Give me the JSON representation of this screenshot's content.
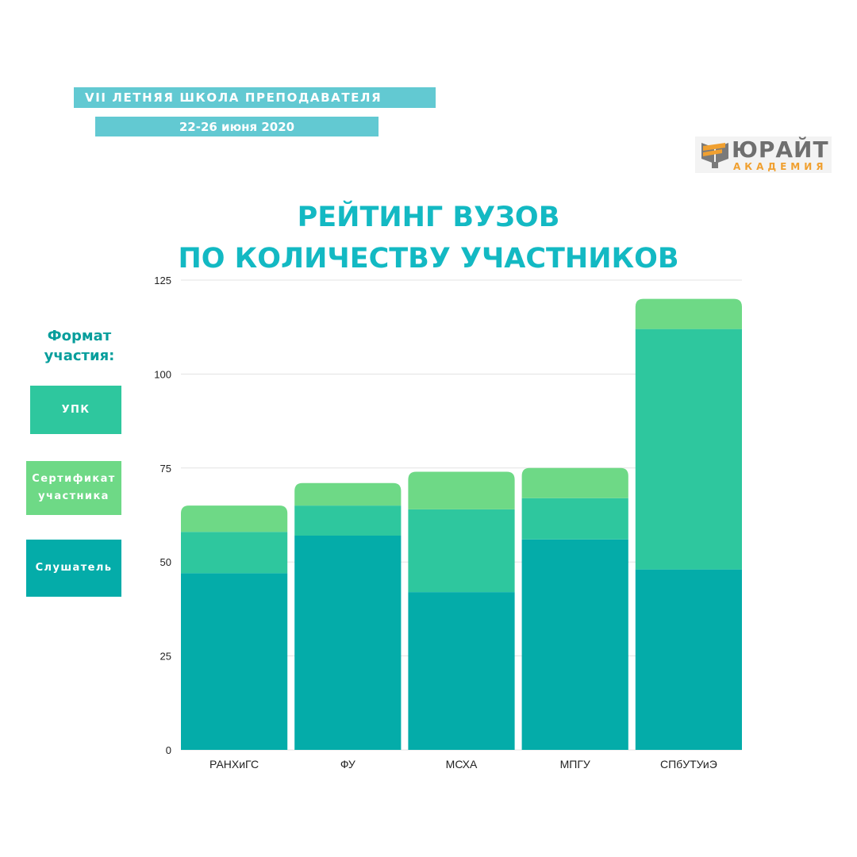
{
  "header": {
    "banner_line1": "VII ЛЕТНЯЯ ШКОЛА ПРЕПОДАВАТЕЛЯ",
    "banner_line2": "22-26 июня 2020"
  },
  "logo": {
    "name": "ЮРАЙТ",
    "subtitle": "АКАДЕМИЯ"
  },
  "title": {
    "line1": "РЕЙТИНГ ВУЗОВ",
    "line2": "ПО КОЛИЧЕСТВУ УЧАСТНИКОВ"
  },
  "legend": {
    "title": "Формат участия:",
    "items": [
      {
        "label": "УПК",
        "color": "#2ec79e"
      },
      {
        "label": "Сертификат участника",
        "color": "#6ed986"
      },
      {
        "label": "Слушатель",
        "color": "#04aca9"
      }
    ]
  },
  "colors": {
    "banner": "#62c9d2",
    "title": "#13b9c3",
    "legend_title": "#079e9c",
    "logo_accent": "#f0a030"
  },
  "chart_data": {
    "type": "bar",
    "stacked": true,
    "title": "РЕЙТИНГ ВУЗОВ ПО КОЛИЧЕСТВУ УЧАСТНИКОВ",
    "categories": [
      "РАНХиГС",
      "ФУ",
      "МСХА",
      "МПГУ",
      "СПбУТУиЭ"
    ],
    "series": [
      {
        "name": "Слушатель",
        "color": "#04aca9",
        "values": [
          47,
          57,
          42,
          56,
          48
        ]
      },
      {
        "name": "УПК",
        "color": "#2ec79e",
        "values": [
          11,
          8,
          22,
          11,
          64
        ]
      },
      {
        "name": "Сертификат участника",
        "color": "#6ed986",
        "values": [
          7,
          6,
          10,
          8,
          8
        ]
      }
    ],
    "ylim": [
      0,
      125
    ],
    "yticks": [
      0,
      25,
      50,
      75,
      100,
      125
    ],
    "grid": true,
    "legend_position": "left"
  }
}
